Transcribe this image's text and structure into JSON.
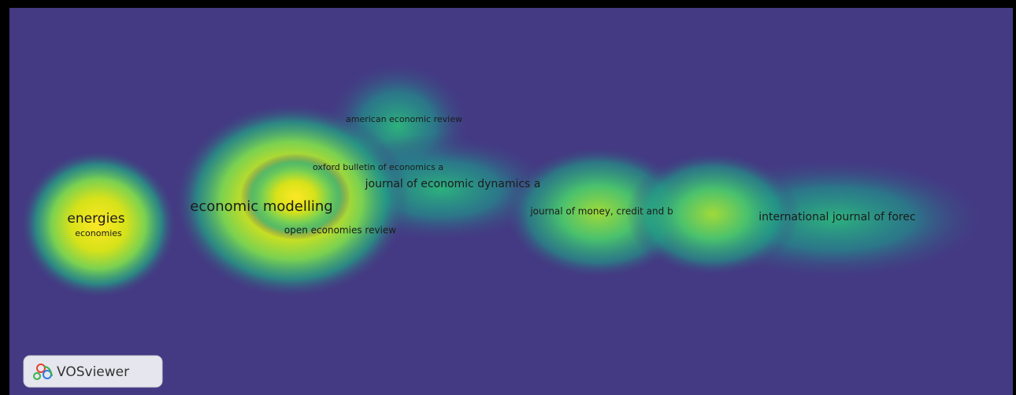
{
  "map": {
    "labels": [
      "american economic review",
      "oxford bulletin of economics a",
      "journal of economic dynamics a",
      "economic modelling",
      "energies",
      "economies",
      "open economies review",
      "journal of money, credit and b",
      "international journal of forec"
    ]
  },
  "logo": {
    "text": "VOSviewer"
  }
}
